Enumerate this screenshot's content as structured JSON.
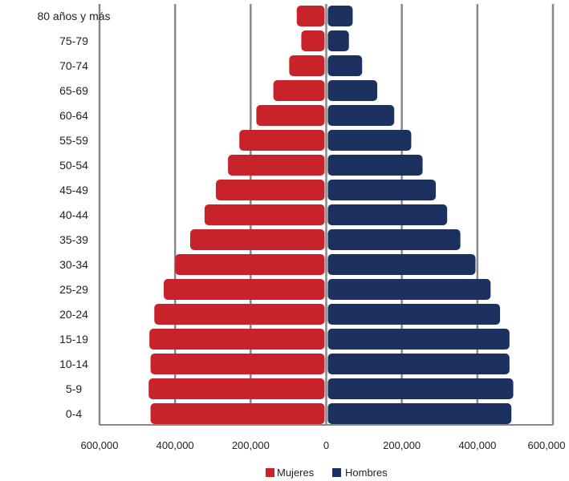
{
  "chart_data": {
    "type": "bar",
    "orientation": "horizontal",
    "categories": [
      "0-4",
      "5-9",
      "10-14",
      "15-19",
      "20-24",
      "25-29",
      "30-34",
      "35-39",
      "40-44",
      "45-49",
      "50-54",
      "55-59",
      "60-64",
      "65-69",
      "70-74",
      "75-79",
      "80 años  y más"
    ],
    "series": [
      {
        "name": "Mujeres",
        "color": "#c8232b",
        "values": [
          465000,
          470000,
          465000,
          468000,
          455000,
          430000,
          400000,
          360000,
          322000,
          292000,
          260000,
          230000,
          185000,
          140000,
          98000,
          66000,
          78000
        ]
      },
      {
        "name": "Hombres",
        "color": "#1c3160",
        "values": [
          490000,
          495000,
          485000,
          485000,
          460000,
          435000,
          395000,
          355000,
          320000,
          290000,
          255000,
          225000,
          180000,
          135000,
          95000,
          60000,
          70000
        ]
      }
    ],
    "x_ticks": [
      "600,000",
      "400,000",
      "200,000",
      "0",
      "200,000",
      "400,000",
      "600,000"
    ],
    "xlim": [
      -600000,
      600000
    ],
    "grid": true,
    "legend": "bottom-center",
    "title": "",
    "xlabel": "",
    "ylabel": ""
  }
}
